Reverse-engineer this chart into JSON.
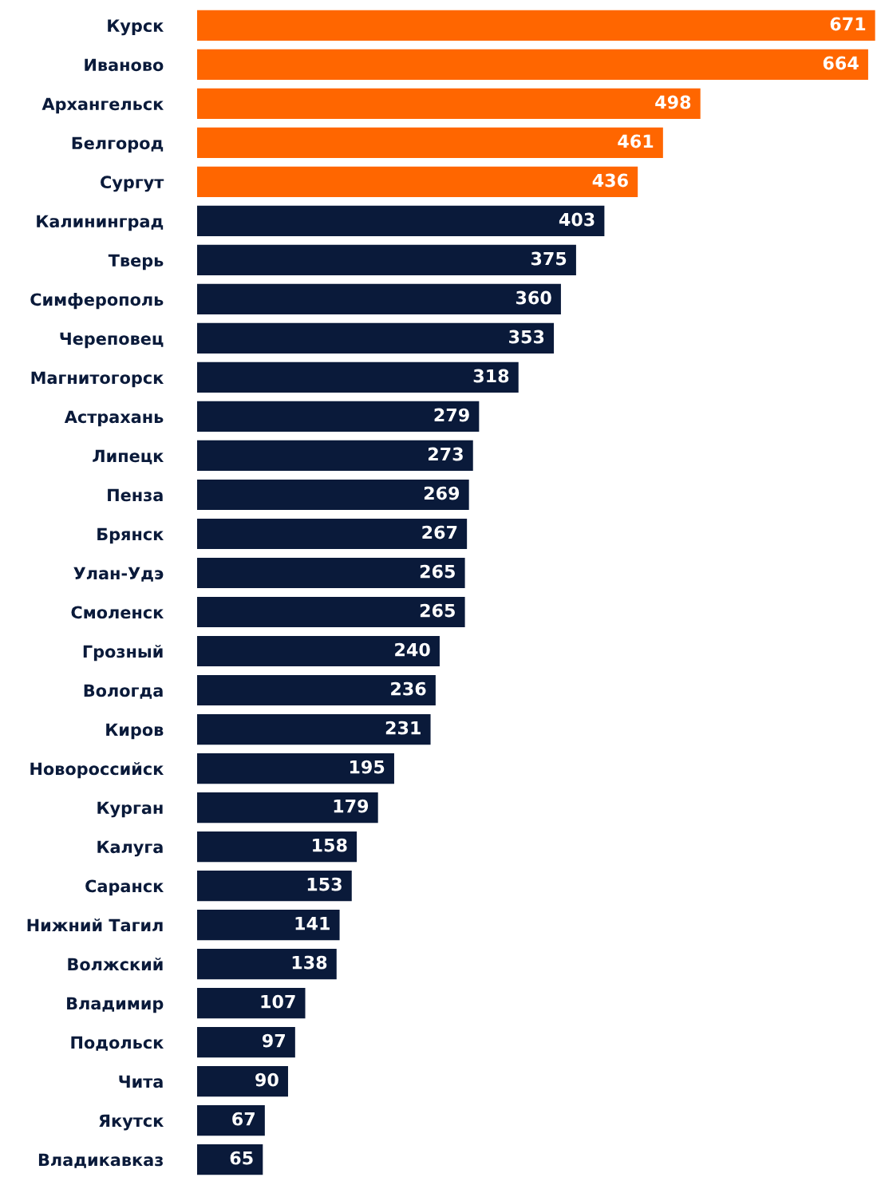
{
  "chart_data": {
    "type": "bar",
    "orientation": "horizontal",
    "tick_labels": "y",
    "data_labels": true,
    "grid": false,
    "legend": false,
    "categories": [
      "Курск",
      "Иваново",
      "Архангельск",
      "Белгород",
      "Сургут",
      "Калининград",
      "Тверь",
      "Симферополь",
      "Череповец",
      "Магнитогорск",
      "Астрахань",
      "Липецк",
      "Пенза",
      "Брянск",
      "Улан-Удэ",
      "Смоленск",
      "Грозный",
      "Вологда",
      "Киров",
      "Новороссийск",
      "Курган",
      "Калуга",
      "Саранск",
      "Нижний Тагил",
      "Волжский",
      "Владимир",
      "Подольск",
      "Чита",
      "Якутск",
      "Владикавказ"
    ],
    "values": [
      671,
      664,
      498,
      461,
      436,
      403,
      375,
      360,
      353,
      318,
      279,
      273,
      269,
      267,
      265,
      265,
      240,
      236,
      231,
      195,
      179,
      158,
      153,
      141,
      138,
      107,
      97,
      90,
      67,
      65
    ],
    "colors": [
      "#ff6600",
      "#ff6600",
      "#ff6600",
      "#ff6600",
      "#ff6600",
      "#0a1a3a",
      "#0a1a3a",
      "#0a1a3a",
      "#0a1a3a",
      "#0a1a3a",
      "#0a1a3a",
      "#0a1a3a",
      "#0a1a3a",
      "#0a1a3a",
      "#0a1a3a",
      "#0a1a3a",
      "#0a1a3a",
      "#0a1a3a",
      "#0a1a3a",
      "#0a1a3a",
      "#0a1a3a",
      "#0a1a3a",
      "#0a1a3a",
      "#0a1a3a",
      "#0a1a3a",
      "#0a1a3a",
      "#0a1a3a",
      "#0a1a3a",
      "#0a1a3a",
      "#0a1a3a"
    ]
  }
}
